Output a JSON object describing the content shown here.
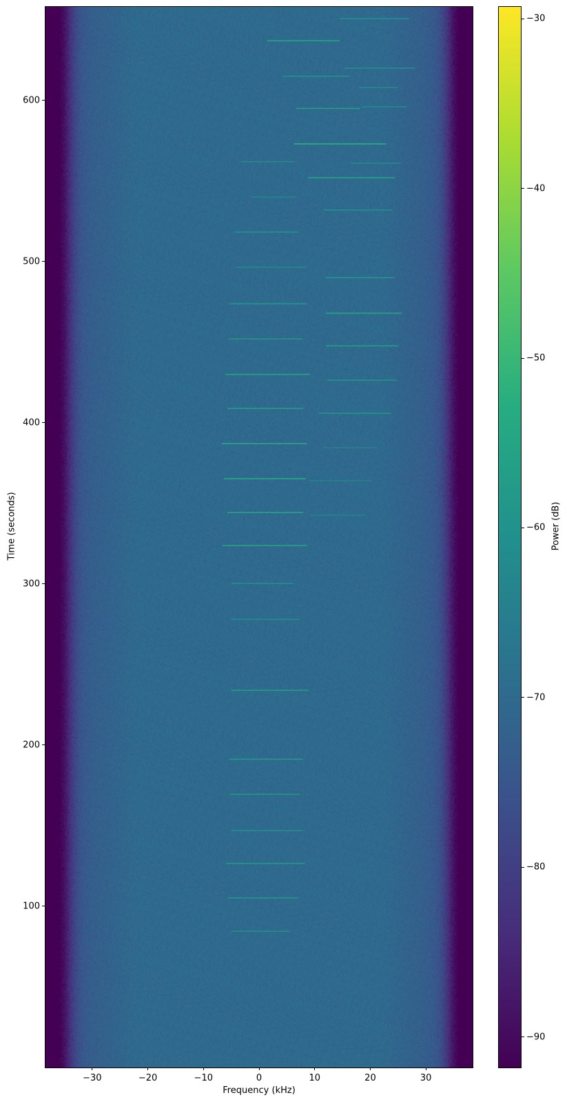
{
  "chart_data": {
    "type": "heatmap",
    "subtype": "spectrogram",
    "title": "",
    "xlabel": "Frequency (kHz)",
    "ylabel": "Time (seconds)",
    "colorbar_label": "Power (dB)",
    "colormap": "viridis",
    "xlim": [
      -38.4,
      38.4
    ],
    "ylim": [
      0,
      658
    ],
    "clim": [
      -91.8,
      -29.3
    ],
    "xticks": [
      -30,
      -20,
      -10,
      0,
      10,
      20,
      30
    ],
    "xtick_labels": [
      "−30",
      "−20",
      "−10",
      "0",
      "10",
      "20",
      "30"
    ],
    "yticks": [
      100,
      200,
      300,
      400,
      500,
      600
    ],
    "ytick_labels": [
      "100",
      "200",
      "300",
      "400",
      "500",
      "600"
    ],
    "cbar_ticks": [
      -30,
      -40,
      -50,
      -60,
      -70,
      -80,
      -90
    ],
    "cbar_tick_labels": [
      "−30",
      "−40",
      "−50",
      "−60",
      "−70",
      "−80",
      "−90"
    ],
    "noise_floor_db": -70,
    "band_edge_khz": 35,
    "outside_band_db": -92,
    "signals": [
      {
        "t": 650.7,
        "f_start": 14.5,
        "f_end": 27.0,
        "power_db": -60
      },
      {
        "t": 637.0,
        "f_start": 1.4,
        "f_end": 14.5,
        "power_db": -55
      },
      {
        "t": 620.0,
        "f_start": 15.4,
        "f_end": 28.0,
        "power_db": -61
      },
      {
        "t": 615.0,
        "f_start": 4.2,
        "f_end": 16.2,
        "power_db": -60
      },
      {
        "t": 608.0,
        "f_start": 18.0,
        "f_end": 25.0,
        "power_db": -62
      },
      {
        "t": 595.0,
        "f_start": 6.7,
        "f_end": 18.2,
        "power_db": -57
      },
      {
        "t": 596.0,
        "f_start": 18.5,
        "f_end": 26.5,
        "power_db": -62
      },
      {
        "t": 573.0,
        "f_start": 6.3,
        "f_end": 22.8,
        "power_db": -52
      },
      {
        "t": 562.0,
        "f_start": -3.2,
        "f_end": 6.3,
        "power_db": -62
      },
      {
        "t": 561.0,
        "f_start": 16.5,
        "f_end": 25.5,
        "power_db": -62
      },
      {
        "t": 552.0,
        "f_start": 8.8,
        "f_end": 24.4,
        "power_db": -55
      },
      {
        "t": 540.0,
        "f_start": -1.4,
        "f_end": 6.7,
        "power_db": -63
      },
      {
        "t": 532.0,
        "f_start": 11.6,
        "f_end": 24.0,
        "power_db": -60
      },
      {
        "t": 518.3,
        "f_start": -4.5,
        "f_end": 7.1,
        "power_db": -60
      },
      {
        "t": 496.5,
        "f_start": -4.2,
        "f_end": 8.6,
        "power_db": -62
      },
      {
        "t": 490.0,
        "f_start": 12.0,
        "f_end": 24.4,
        "power_db": -59
      },
      {
        "t": 473.8,
        "f_start": -5.3,
        "f_end": 8.6,
        "power_db": -58
      },
      {
        "t": 468.0,
        "f_start": 12.0,
        "f_end": 25.7,
        "power_db": -55
      },
      {
        "t": 452.0,
        "f_start": -5.5,
        "f_end": 7.9,
        "power_db": -58
      },
      {
        "t": 447.7,
        "f_start": 12.0,
        "f_end": 25.0,
        "power_db": -57
      },
      {
        "t": 430.0,
        "f_start": -6.0,
        "f_end": 9.2,
        "power_db": -54
      },
      {
        "t": 426.4,
        "f_start": 12.3,
        "f_end": 24.7,
        "power_db": -59
      },
      {
        "t": 408.9,
        "f_start": -5.7,
        "f_end": 7.9,
        "power_db": -56
      },
      {
        "t": 405.9,
        "f_start": 10.8,
        "f_end": 23.7,
        "power_db": -59
      },
      {
        "t": 387.0,
        "f_start": -6.7,
        "f_end": 8.6,
        "power_db": -53
      },
      {
        "t": 384.5,
        "f_start": 11.6,
        "f_end": 21.3,
        "power_db": -64
      },
      {
        "t": 365.3,
        "f_start": -6.3,
        "f_end": 8.4,
        "power_db": -53
      },
      {
        "t": 364.0,
        "f_start": 9.0,
        "f_end": 20.3,
        "power_db": -64
      },
      {
        "t": 344.3,
        "f_start": -5.7,
        "f_end": 7.9,
        "power_db": -55
      },
      {
        "t": 342.6,
        "f_start": 9.2,
        "f_end": 19.1,
        "power_db": -64
      },
      {
        "t": 323.8,
        "f_start": -6.6,
        "f_end": 8.6,
        "power_db": -56
      },
      {
        "t": 300.3,
        "f_start": -5.0,
        "f_end": 6.1,
        "power_db": -61
      },
      {
        "t": 278.0,
        "f_start": -5.0,
        "f_end": 7.3,
        "power_db": -61
      },
      {
        "t": 234.0,
        "f_start": -5.0,
        "f_end": 8.9,
        "power_db": -57
      },
      {
        "t": 191.3,
        "f_start": -5.3,
        "f_end": 7.9,
        "power_db": -58
      },
      {
        "t": 169.5,
        "f_start": -5.3,
        "f_end": 7.3,
        "power_db": -59
      },
      {
        "t": 147.0,
        "f_start": -5.0,
        "f_end": 7.9,
        "power_db": -60
      },
      {
        "t": 126.6,
        "f_start": -5.9,
        "f_end": 8.3,
        "power_db": -58
      },
      {
        "t": 105.2,
        "f_start": -5.7,
        "f_end": 7.1,
        "power_db": -59
      },
      {
        "t": 84.5,
        "f_start": -5.0,
        "f_end": 5.5,
        "power_db": -61
      }
    ]
  }
}
